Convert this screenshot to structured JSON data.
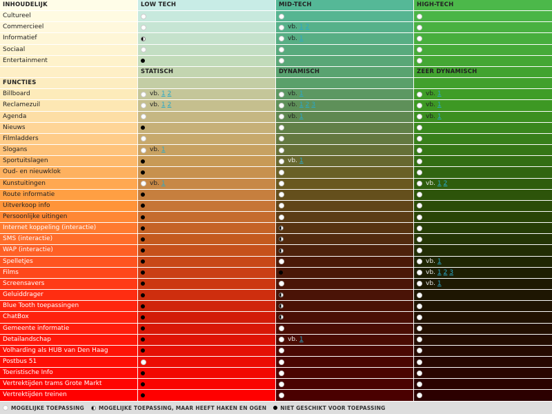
{
  "columns": {
    "low": "LOW TECH",
    "mid": "MID-TECH",
    "high": "HIGH-TECH"
  },
  "section_content": {
    "title": "INHOUDELIJK",
    "rows": [
      {
        "label": "Cultureel",
        "low": {
          "dot": "full"
        },
        "mid": {
          "dot": "full"
        },
        "high": {
          "dot": "full"
        }
      },
      {
        "label": "Commercieel",
        "low": {
          "dot": "full"
        },
        "mid": {
          "dot": "full",
          "vb": "vb.",
          "links": [
            "1",
            "2"
          ]
        },
        "high": {
          "dot": "full"
        }
      },
      {
        "label": "Informatief",
        "low": {
          "dot": "half"
        },
        "mid": {
          "dot": "full",
          "vb": "vb.",
          "links": [
            "1"
          ]
        },
        "high": {
          "dot": "full"
        }
      },
      {
        "label": "Sociaal",
        "low": {
          "dot": "full"
        },
        "mid": {
          "dot": "full"
        },
        "high": {
          "dot": "full"
        }
      },
      {
        "label": "Entertainment",
        "low": {
          "dot": "none"
        },
        "mid": {
          "dot": "full"
        },
        "high": {
          "dot": "full"
        }
      }
    ]
  },
  "section_functions": {
    "title": "FUNCTIES",
    "subheads": {
      "low": "STATISCH",
      "mid": "DYNAMISCH",
      "high": "ZEER DYNAMISCH"
    },
    "rows": [
      {
        "label": "Billboard",
        "low": {
          "dot": "full",
          "vb": "vb.",
          "links": [
            "1",
            "2"
          ]
        },
        "mid": {
          "dot": "full",
          "vb": "vb.",
          "links": [
            "1"
          ]
        },
        "high": {
          "dot": "full",
          "vb": "vb.",
          "links": [
            "1"
          ]
        }
      },
      {
        "label": "Reclamezuil",
        "low": {
          "dot": "full",
          "vb": "vb.",
          "links": [
            "1",
            "2"
          ]
        },
        "mid": {
          "dot": "full",
          "vb": "vb.",
          "links": [
            "1",
            "2",
            "3"
          ]
        },
        "high": {
          "dot": "full",
          "vb": "vb.",
          "links": [
            "1"
          ]
        }
      },
      {
        "label": "Agenda",
        "low": {
          "dot": "full"
        },
        "mid": {
          "dot": "full",
          "vb": "vb.",
          "links": [
            "1"
          ]
        },
        "high": {
          "dot": "full",
          "vb": "vb.",
          "links": [
            "1"
          ]
        }
      },
      {
        "label": "Nieuws",
        "low": {
          "dot": "none"
        },
        "mid": {
          "dot": "full"
        },
        "high": {
          "dot": "full"
        }
      },
      {
        "label": "Filmladders",
        "low": {
          "dot": "full"
        },
        "mid": {
          "dot": "full"
        },
        "high": {
          "dot": "full"
        }
      },
      {
        "label": "Slogans",
        "low": {
          "dot": "full",
          "vb": "vb.",
          "links": [
            "1"
          ]
        },
        "mid": {
          "dot": "full"
        },
        "high": {
          "dot": "full"
        }
      },
      {
        "label": "Sportuitslagen",
        "low": {
          "dot": "none"
        },
        "mid": {
          "dot": "full",
          "vb": "vb.",
          "links": [
            "1"
          ]
        },
        "high": {
          "dot": "full"
        }
      },
      {
        "label": "Oud- en nieuwklok",
        "low": {
          "dot": "none"
        },
        "mid": {
          "dot": "full"
        },
        "high": {
          "dot": "full"
        }
      },
      {
        "label": "Kunstuitingen",
        "low": {
          "dot": "full",
          "vb": "vb.",
          "links": [
            "1"
          ]
        },
        "mid": {
          "dot": "full"
        },
        "high": {
          "dot": "full",
          "vb": "vb.",
          "links": [
            "1",
            "2"
          ]
        }
      },
      {
        "label": "Route informatie",
        "low": {
          "dot": "none"
        },
        "mid": {
          "dot": "full"
        },
        "high": {
          "dot": "full"
        }
      },
      {
        "label": "Uitverkoop info",
        "low": {
          "dot": "none"
        },
        "mid": {
          "dot": "full"
        },
        "high": {
          "dot": "full"
        }
      },
      {
        "label": "Persoonlijke uitingen",
        "low": {
          "dot": "none"
        },
        "mid": {
          "dot": "full"
        },
        "high": {
          "dot": "full"
        }
      },
      {
        "label": "Internet koppeling (interactie)",
        "low": {
          "dot": "none"
        },
        "mid": {
          "dot": "half"
        },
        "high": {
          "dot": "full"
        }
      },
      {
        "label": "SMS (interactie)",
        "low": {
          "dot": "none"
        },
        "mid": {
          "dot": "half"
        },
        "high": {
          "dot": "full"
        }
      },
      {
        "label": "WAP (interactie)",
        "low": {
          "dot": "none"
        },
        "mid": {
          "dot": "half"
        },
        "high": {
          "dot": "full"
        }
      },
      {
        "label": "Spelletjes",
        "low": {
          "dot": "none"
        },
        "mid": {
          "dot": "full"
        },
        "high": {
          "dot": "full",
          "vb": "vb.",
          "links": [
            "1"
          ]
        }
      },
      {
        "label": "Films",
        "low": {
          "dot": "none"
        },
        "mid": {
          "dot": "none"
        },
        "high": {
          "dot": "full",
          "vb": "vb.",
          "links": [
            "1",
            "2",
            "3"
          ]
        }
      },
      {
        "label": "Screensavers",
        "low": {
          "dot": "none"
        },
        "mid": {
          "dot": "full"
        },
        "high": {
          "dot": "full",
          "vb": "vb.",
          "links": [
            "1"
          ]
        }
      },
      {
        "label": "Geluiddrager",
        "low": {
          "dot": "none"
        },
        "mid": {
          "dot": "half"
        },
        "high": {
          "dot": "full"
        }
      },
      {
        "label": "Blue Tooth toepassingen",
        "low": {
          "dot": "none"
        },
        "mid": {
          "dot": "half"
        },
        "high": {
          "dot": "full"
        }
      },
      {
        "label": "ChatBox",
        "low": {
          "dot": "none"
        },
        "mid": {
          "dot": "half"
        },
        "high": {
          "dot": "full"
        }
      },
      {
        "label": "Gemeente informatie",
        "low": {
          "dot": "none"
        },
        "mid": {
          "dot": "full"
        },
        "high": {
          "dot": "full"
        }
      },
      {
        "label": "Detailandschap",
        "low": {
          "dot": "none"
        },
        "mid": {
          "dot": "full",
          "vb": "vb.",
          "links": [
            "1"
          ]
        },
        "high": {
          "dot": "full"
        }
      },
      {
        "label": "Volharding als HUB van Den Haag",
        "low": {
          "dot": "none"
        },
        "mid": {
          "dot": "full"
        },
        "high": {
          "dot": "full"
        }
      },
      {
        "label": "Postbus 51",
        "low": {
          "dot": "full"
        },
        "mid": {
          "dot": "full"
        },
        "high": {
          "dot": "full"
        }
      },
      {
        "label": "Toeristische Info",
        "low": {
          "dot": "none"
        },
        "mid": {
          "dot": "full"
        },
        "high": {
          "dot": "full"
        }
      },
      {
        "label": "Vertrektijden trams Grote Markt",
        "low": {
          "dot": "none"
        },
        "mid": {
          "dot": "full"
        },
        "high": {
          "dot": "full"
        }
      },
      {
        "label": "Vertrektijden treinen",
        "low": {
          "dot": "none"
        },
        "mid": {
          "dot": "full"
        },
        "high": {
          "dot": "full"
        }
      }
    ]
  },
  "legend": {
    "full": "MOGELIJKE TOEPASSING",
    "half": "MOGELIJKE TOEPASSING, MAAR HEEFT HAKEN EN OGEN",
    "none": "NIET GESCHIKT VOOR TOEPASSING"
  },
  "colors": {
    "col0_top": "#fffde8",
    "col1_top": "#c8ece6",
    "col2_top": "#55b897",
    "col3_top": "#4cb84a",
    "bottom_red": "#ff0000",
    "bottom_dark": "#300000",
    "legend_bg": "#dddddd",
    "link": "#2aa9c9"
  }
}
